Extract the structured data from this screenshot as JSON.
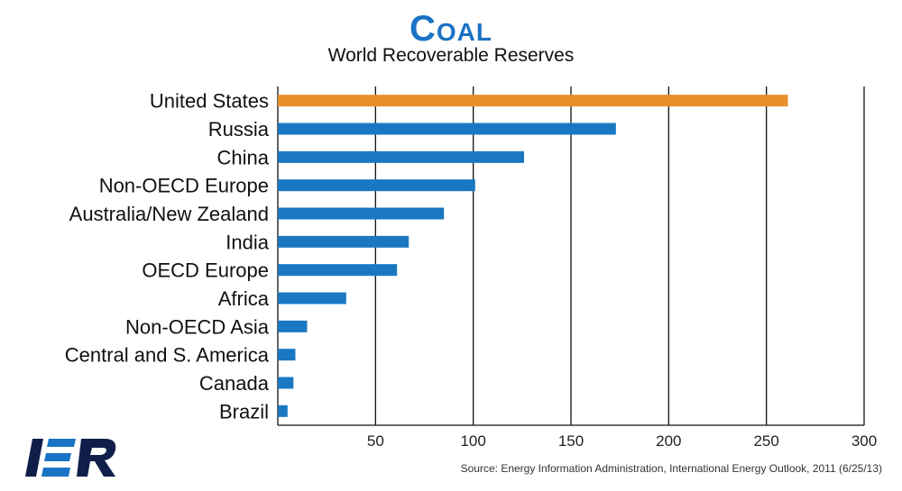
{
  "header": {
    "title": "Coal",
    "subtitle": "World Recoverable Reserves"
  },
  "footer": {
    "source": "Source: Energy Information Administration, International Energy Outlook, 2011 (6/25/13)",
    "logo_text": "IER"
  },
  "colors": {
    "highlight": "#e8902a",
    "bar": "#1a78c2",
    "title": "#1a73c4",
    "logo": "#0f1f4a",
    "logo_accent": "#1a73c4"
  },
  "chart_data": {
    "type": "bar",
    "orientation": "horizontal",
    "categories": [
      "United States",
      "Russia",
      "China",
      "Non-OECD Europe",
      "Australia/New Zealand",
      "India",
      "OECD Europe",
      "Africa",
      "Non-OECD Asia",
      "Central and S. America",
      "Canada",
      "Brazil"
    ],
    "values": [
      261,
      173,
      126,
      101,
      85,
      67,
      61,
      35,
      15,
      9,
      8,
      5
    ],
    "highlight_category": "United States",
    "xlim": [
      0,
      300
    ],
    "xticks": [
      50,
      100,
      150,
      200,
      250,
      300
    ],
    "grid": "vertical",
    "xlabel": "",
    "ylabel": ""
  }
}
